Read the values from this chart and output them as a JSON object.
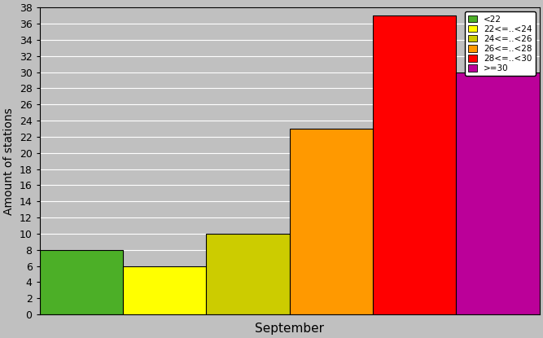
{
  "categories": [
    "<22",
    "22<=..<24",
    "24<=..<26",
    "26<=..<28",
    "28<=..<30",
    ">=30"
  ],
  "values": [
    8,
    6,
    10,
    23,
    37,
    30
  ],
  "colors": [
    "#4caf27",
    "#ffff00",
    "#cccc00",
    "#ff9900",
    "#ff0000",
    "#bb0099"
  ],
  "xlabel": "September",
  "ylabel": "Amount of stations",
  "ylim": [
    0,
    38
  ],
  "yticks": [
    0,
    2,
    4,
    6,
    8,
    10,
    12,
    14,
    16,
    18,
    20,
    22,
    24,
    26,
    28,
    30,
    32,
    34,
    36,
    38
  ],
  "background_color": "#c0c0c0",
  "bar_edge_color": "#000000",
  "legend_labels": [
    "<22",
    "22<=..<24",
    "24<=..<26",
    "26<=..<28",
    "28<=..<30",
    ">=30"
  ]
}
